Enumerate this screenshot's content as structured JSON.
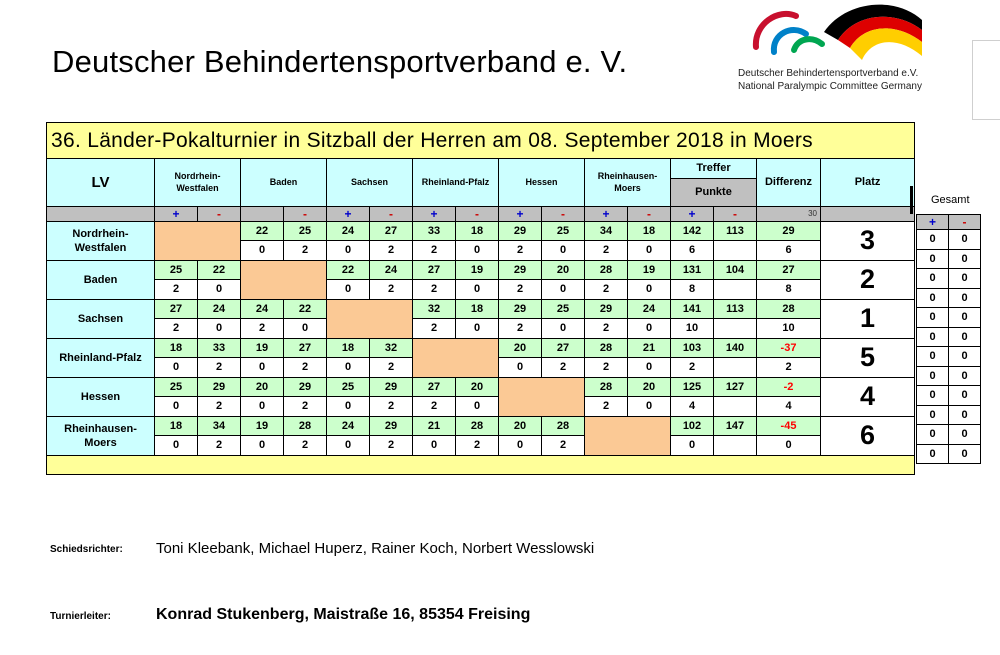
{
  "header": {
    "title": "Deutscher Behindertensportverband e. V."
  },
  "logo": {
    "line1": "Deutscher Behindertensportverband e.V.",
    "line2": "National Paralympic Committee Germany",
    "colors": [
      "#c8102e",
      "#0081c8",
      "#00a651",
      "#000000",
      "#dd0000",
      "#ffce00"
    ]
  },
  "table": {
    "title": "36. Länder-Pokalturnier in Sitzball der Herren am 08. September 2018 in Moers",
    "lv_label": "LV",
    "columns": [
      "Nordrhein-Westfalen",
      "Baden",
      "Sachsen",
      "Rheinland-Pfalz",
      "Hessen",
      "Rheinhausen-Moers"
    ],
    "column_display": [
      "Nordrhein-\nWestfalen",
      "Baden",
      "Sachsen",
      "Rheinland-Pfalz",
      "Hessen",
      "Rheinhausen-\nMoers"
    ],
    "treffer_label": "Treffer",
    "punkte_label": "Punkte",
    "differenz_label": "Differenz",
    "platz_label": "Platz",
    "plus": "+",
    "minus": "-",
    "thirty": "30",
    "rows": [
      {
        "team": "Nordrhein-\nWestfalen",
        "self": 0,
        "scores": [
          null,
          [
            "22",
            "25"
          ],
          [
            "24",
            "27"
          ],
          [
            "33",
            "18"
          ],
          [
            "29",
            "25"
          ],
          [
            "34",
            "18"
          ]
        ],
        "points": [
          null,
          [
            "0",
            "2"
          ],
          [
            "0",
            "2"
          ],
          [
            "2",
            "0"
          ],
          [
            "2",
            "0"
          ],
          [
            "2",
            "0"
          ]
        ],
        "treffer": [
          "142",
          "113"
        ],
        "punkte": "6",
        "differenz": "29",
        "differenz_neg": false,
        "diff_points": "6",
        "platz": "3"
      },
      {
        "team": "Baden",
        "self": 1,
        "scores": [
          [
            "25",
            "22"
          ],
          null,
          [
            "22",
            "24"
          ],
          [
            "27",
            "19"
          ],
          [
            "29",
            "20"
          ],
          [
            "28",
            "19"
          ]
        ],
        "points": [
          [
            "2",
            "0"
          ],
          null,
          [
            "0",
            "2"
          ],
          [
            "2",
            "0"
          ],
          [
            "2",
            "0"
          ],
          [
            "2",
            "0"
          ]
        ],
        "treffer": [
          "131",
          "104"
        ],
        "punkte": "8",
        "differenz": "27",
        "differenz_neg": false,
        "diff_points": "8",
        "platz": "2"
      },
      {
        "team": "Sachsen",
        "self": 2,
        "scores": [
          [
            "27",
            "24"
          ],
          [
            "24",
            "22"
          ],
          null,
          [
            "32",
            "18"
          ],
          [
            "29",
            "25"
          ],
          [
            "29",
            "24"
          ]
        ],
        "points": [
          [
            "2",
            "0"
          ],
          [
            "2",
            "0"
          ],
          null,
          [
            "2",
            "0"
          ],
          [
            "2",
            "0"
          ],
          [
            "2",
            "0"
          ]
        ],
        "treffer": [
          "141",
          "113"
        ],
        "punkte": "10",
        "differenz": "28",
        "differenz_neg": false,
        "diff_points": "10",
        "platz": "1"
      },
      {
        "team": "Rheinland-Pfalz",
        "self": 3,
        "scores": [
          [
            "18",
            "33"
          ],
          [
            "19",
            "27"
          ],
          [
            "18",
            "32"
          ],
          null,
          [
            "20",
            "27"
          ],
          [
            "28",
            "21"
          ]
        ],
        "points": [
          [
            "0",
            "2"
          ],
          [
            "0",
            "2"
          ],
          [
            "0",
            "2"
          ],
          null,
          [
            "0",
            "2"
          ],
          [
            "2",
            "0"
          ]
        ],
        "treffer": [
          "103",
          "140"
        ],
        "punkte": "2",
        "differenz": "-37",
        "differenz_neg": true,
        "diff_points": "2",
        "platz": "5"
      },
      {
        "team": "Hessen",
        "self": 4,
        "scores": [
          [
            "25",
            "29"
          ],
          [
            "20",
            "29"
          ],
          [
            "25",
            "29"
          ],
          [
            "27",
            "20"
          ],
          null,
          [
            "28",
            "20"
          ]
        ],
        "points": [
          [
            "0",
            "2"
          ],
          [
            "0",
            "2"
          ],
          [
            "0",
            "2"
          ],
          [
            "2",
            "0"
          ],
          null,
          [
            "2",
            "0"
          ]
        ],
        "treffer": [
          "125",
          "127"
        ],
        "punkte": "4",
        "differenz": "-2",
        "differenz_neg": true,
        "diff_points": "4",
        "platz": "4"
      },
      {
        "team": "Rheinhausen-\nMoers",
        "self": 5,
        "scores": [
          [
            "18",
            "34"
          ],
          [
            "19",
            "28"
          ],
          [
            "24",
            "29"
          ],
          [
            "21",
            "28"
          ],
          [
            "20",
            "28"
          ],
          null
        ],
        "points": [
          [
            "0",
            "2"
          ],
          [
            "0",
            "2"
          ],
          [
            "0",
            "2"
          ],
          [
            "0",
            "2"
          ],
          [
            "0",
            "2"
          ],
          null
        ],
        "treffer": [
          "102",
          "147"
        ],
        "punkte": "0",
        "differenz": "-45",
        "differenz_neg": true,
        "diff_points": "0",
        "platz": "6"
      }
    ]
  },
  "gesamt": {
    "label": "Gesamt",
    "plus": "+",
    "minus": "-",
    "values": [
      [
        "0",
        "0"
      ],
      [
        "0",
        "0"
      ],
      [
        "0",
        "0"
      ],
      [
        "0",
        "0"
      ],
      [
        "0",
        "0"
      ],
      [
        "0",
        "0"
      ],
      [
        "0",
        "0"
      ],
      [
        "0",
        "0"
      ],
      [
        "0",
        "0"
      ],
      [
        "0",
        "0"
      ],
      [
        "0",
        "0"
      ],
      [
        "0",
        "0"
      ]
    ]
  },
  "footer": {
    "referees_label": "Schiedsrichter:",
    "referees": "Toni Kleebank, Michael Huperz, Rainer Koch, Norbert Wesslowski",
    "director_label": "Turnierleiter:",
    "director": "Konrad Stukenberg, Maistraße 16, 85354 Freising"
  }
}
